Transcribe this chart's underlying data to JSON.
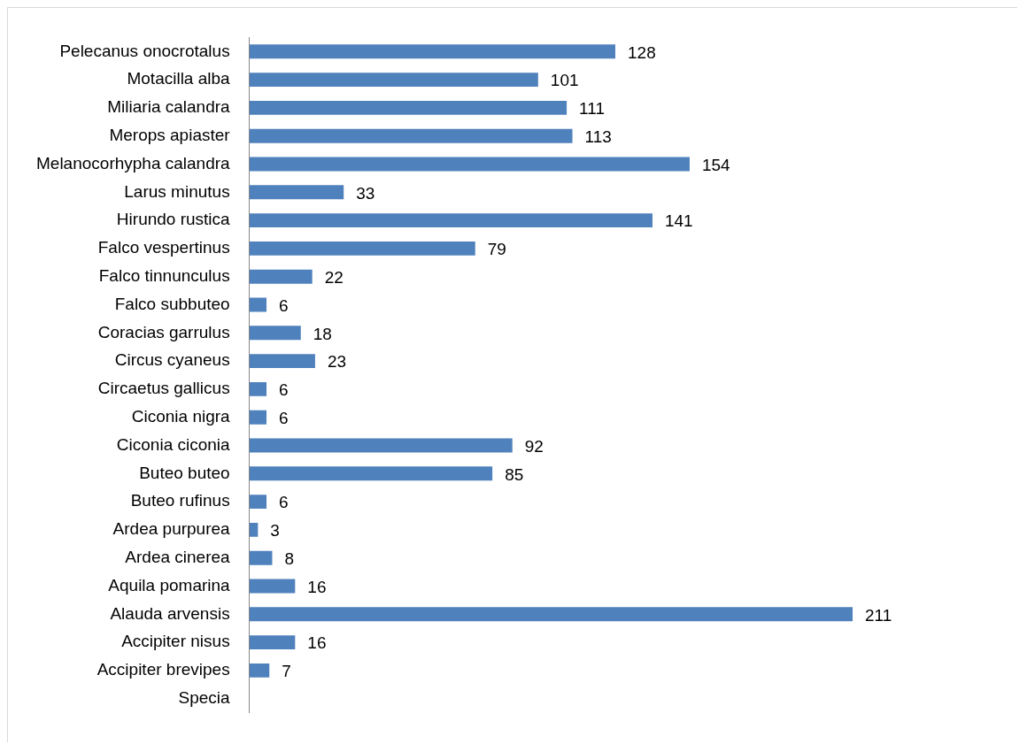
{
  "chart_data": {
    "type": "bar",
    "orientation": "horizontal",
    "categories": [
      "Pelecanus onocrotalus",
      "Motacilla alba",
      "Miliaria calandra",
      "Merops apiaster",
      "Melanocorhypha calandra",
      "Larus minutus",
      "Hirundo rustica",
      "Falco vespertinus",
      "Falco tinnunculus",
      "Falco subbuteo",
      "Coracias garrulus",
      "Circus cyaneus",
      "Circaetus gallicus",
      "Ciconia nigra",
      "Ciconia ciconia",
      "Buteo buteo",
      "Buteo rufinus",
      "Ardea purpurea",
      "Ardea cinerea",
      "Aquila pomarina",
      "Alauda arvensis",
      "Accipiter nisus",
      "Accipiter brevipes",
      "Specia"
    ],
    "values": [
      128,
      101,
      111,
      113,
      154,
      33,
      141,
      79,
      22,
      6,
      18,
      23,
      6,
      6,
      92,
      85,
      6,
      3,
      8,
      16,
      211,
      16,
      7,
      null
    ],
    "color": "#4f81bd",
    "data_labels": true,
    "tick_labels": "y",
    "grid": false,
    "legend": false
  }
}
